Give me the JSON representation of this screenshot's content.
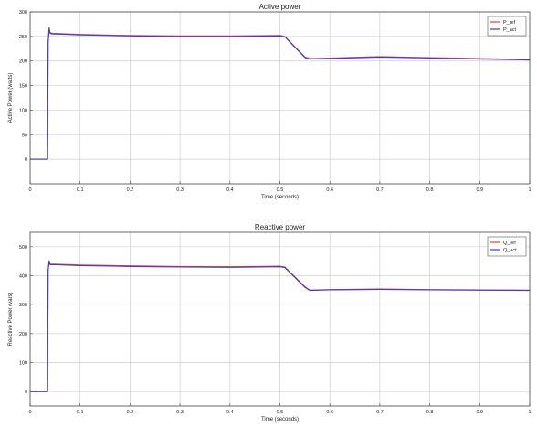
{
  "chart_data": [
    {
      "type": "line",
      "title": "Active power",
      "xlabel": "Time (seconds)",
      "ylabel": "Active Power (watts)",
      "xlim": [
        0,
        1
      ],
      "ylim": [
        -50,
        300
      ],
      "x_ticks": [
        "0",
        "0.1",
        "0.2",
        "0.3",
        "0.4",
        "0.5",
        "0.6",
        "0.7",
        "0.8",
        "0.9",
        "1"
      ],
      "y_ticks": [
        "0",
        "50",
        "100",
        "150",
        "200",
        "250",
        "300"
      ],
      "y_tick_values": [
        0,
        50,
        100,
        150,
        200,
        250,
        300
      ],
      "grid": true,
      "legend_position": "top-right",
      "series": [
        {
          "name": "P_ref",
          "color": "#e8403a",
          "x": [
            0,
            0.035,
            0.036,
            0.038,
            0.04,
            0.045,
            0.05,
            0.1,
            0.2,
            0.3,
            0.4,
            0.5,
            0.51,
            0.55,
            0.56,
            0.6,
            0.7,
            0.8,
            0.9,
            1.0
          ],
          "y": [
            0,
            0,
            240,
            262,
            258,
            256,
            256,
            254,
            252,
            251,
            251,
            252,
            250,
            208,
            205,
            206,
            209,
            207,
            205,
            203
          ]
        },
        {
          "name": "P_act",
          "color": "#3b3bd6",
          "x": [
            0,
            0.035,
            0.036,
            0.038,
            0.04,
            0.045,
            0.05,
            0.1,
            0.2,
            0.3,
            0.4,
            0.5,
            0.51,
            0.55,
            0.56,
            0.6,
            0.7,
            0.8,
            0.9,
            1.0
          ],
          "y": [
            0,
            0,
            236,
            268,
            256,
            255,
            255,
            253,
            251,
            250,
            250,
            251,
            249,
            207,
            204,
            205,
            208,
            206,
            204,
            202
          ]
        }
      ]
    },
    {
      "type": "line",
      "title": "Reactive power",
      "xlabel": "Time (seconds)",
      "ylabel": "Reactive Power (vars)",
      "xlim": [
        0,
        1
      ],
      "ylim": [
        -50,
        550
      ],
      "x_ticks": [
        "0",
        "0.1",
        "0.2",
        "0.3",
        "0.4",
        "0.5",
        "0.6",
        "0.7",
        "0.8",
        "0.9",
        "1"
      ],
      "y_ticks": [
        "0",
        "100",
        "200",
        "300",
        "400",
        "500"
      ],
      "y_tick_values": [
        0,
        100,
        200,
        300,
        400,
        500
      ],
      "grid": true,
      "legend_position": "top-right",
      "series": [
        {
          "name": "Q_ref",
          "color": "#e8403a",
          "x": [
            0,
            0.035,
            0.036,
            0.038,
            0.04,
            0.045,
            0.05,
            0.1,
            0.2,
            0.3,
            0.4,
            0.5,
            0.51,
            0.55,
            0.56,
            0.6,
            0.7,
            0.8,
            0.9,
            1.0
          ],
          "y": [
            0,
            0,
            420,
            448,
            440,
            440,
            440,
            437,
            434,
            432,
            431,
            433,
            430,
            362,
            350,
            352,
            354,
            352,
            351,
            350
          ]
        },
        {
          "name": "Q_act",
          "color": "#3b3bd6",
          "x": [
            0,
            0.035,
            0.036,
            0.038,
            0.04,
            0.045,
            0.05,
            0.1,
            0.2,
            0.3,
            0.4,
            0.5,
            0.51,
            0.55,
            0.56,
            0.6,
            0.7,
            0.8,
            0.9,
            1.0
          ],
          "y": [
            0,
            0,
            416,
            452,
            438,
            438,
            438,
            435,
            432,
            430,
            429,
            431,
            428,
            360,
            349,
            351,
            353,
            351,
            350,
            349
          ]
        }
      ]
    }
  ]
}
